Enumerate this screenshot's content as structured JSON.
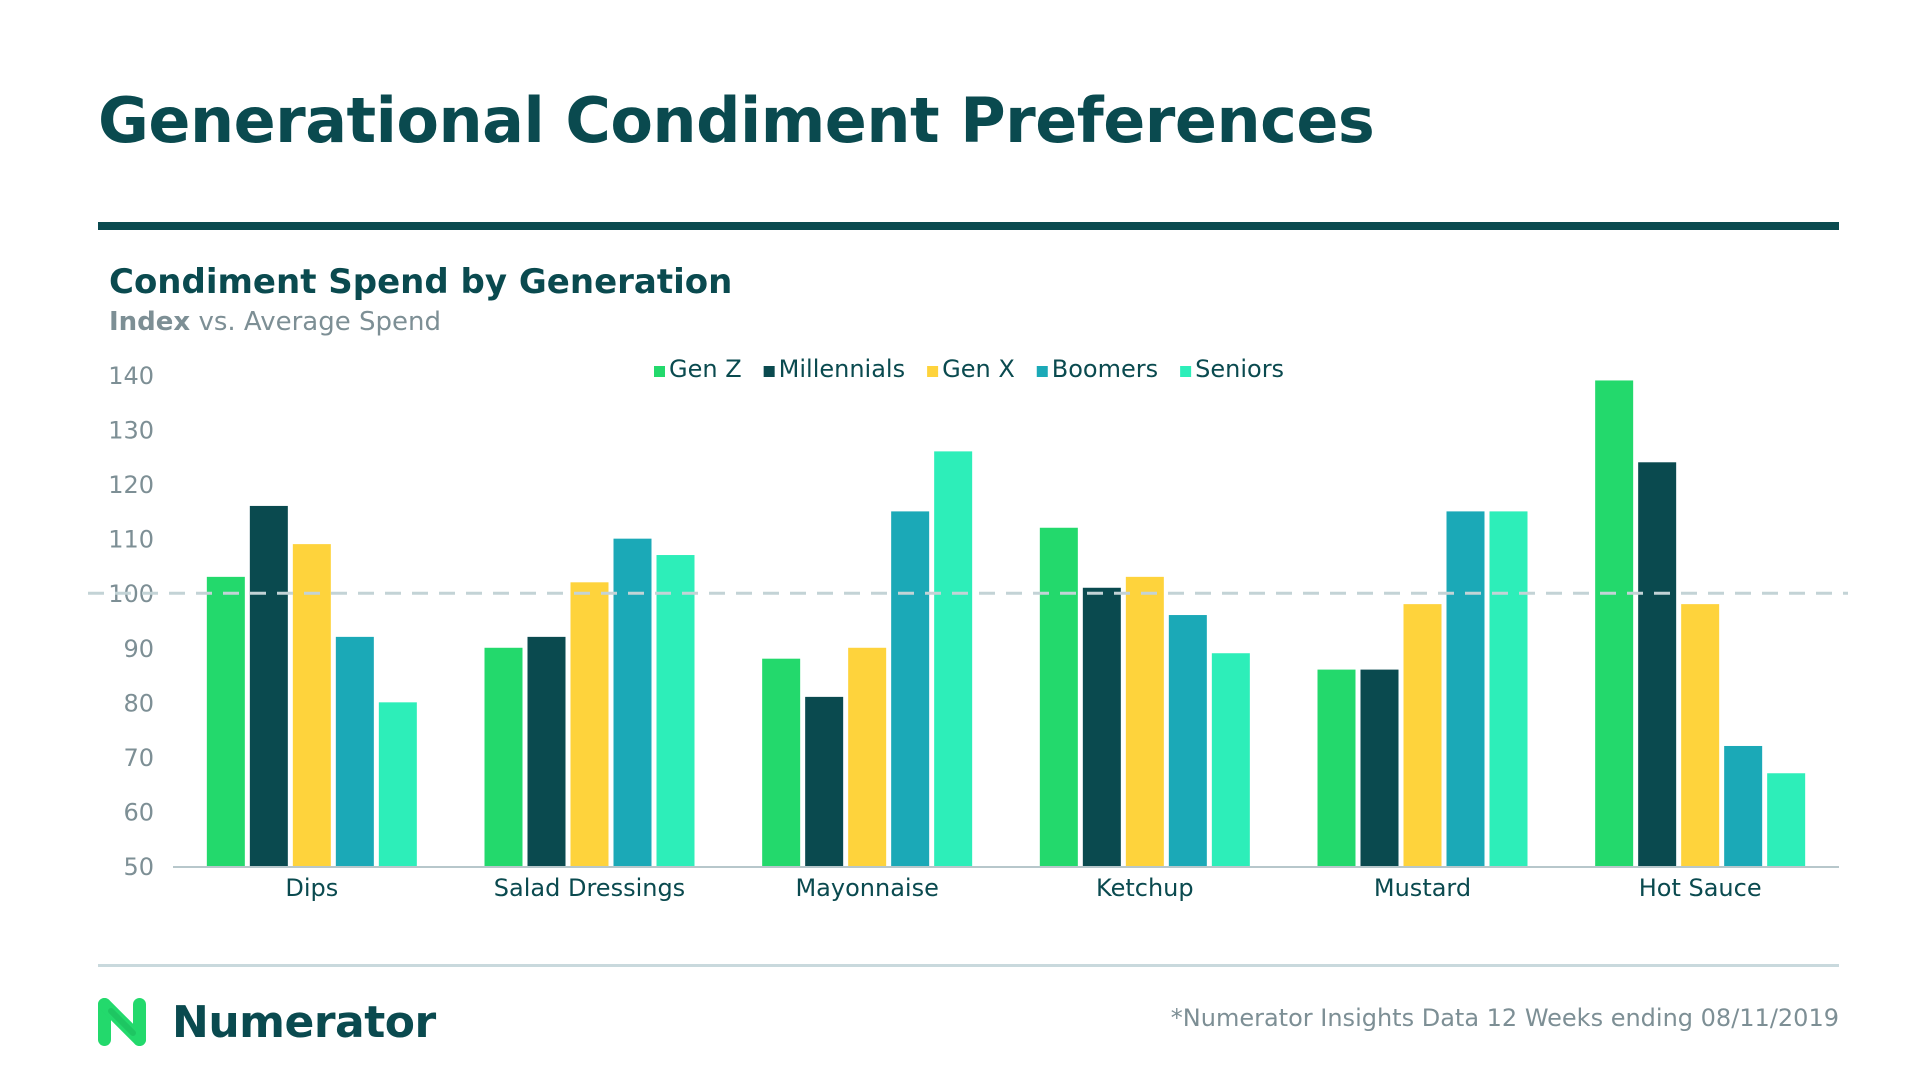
{
  "page": {
    "title": "Generational Condiment Preferences",
    "source_note": "*Numerator Insights Data 12 Weeks ending 08/11/2019"
  },
  "brand": {
    "name": "Numerator",
    "icon": "numerator-n-logo",
    "color": "#23d96c"
  },
  "chart_data": {
    "type": "bar",
    "title": "Condiment Spend by Generation",
    "subtitle_bold": "Index",
    "subtitle_rest": " vs. Average Spend",
    "xlabel": "",
    "ylabel": "",
    "ylim": [
      50,
      140
    ],
    "yticks": [
      50,
      60,
      70,
      80,
      90,
      100,
      110,
      120,
      130,
      140
    ],
    "reference_line": 100,
    "legend_position": "top-center",
    "categories": [
      "Dips",
      "Salad Dressings",
      "Mayonnaise",
      "Ketchup",
      "Mustard",
      "Hot Sauce"
    ],
    "series": [
      {
        "name": "Gen Z",
        "color": "#23d96c",
        "values": [
          103,
          90,
          88,
          112,
          86,
          139
        ]
      },
      {
        "name": "Millennials",
        "color": "#0a4a4f",
        "values": [
          116,
          92,
          81,
          101,
          86,
          124
        ]
      },
      {
        "name": "Gen X",
        "color": "#fed33c",
        "values": [
          109,
          102,
          90,
          103,
          98,
          98
        ]
      },
      {
        "name": "Boomers",
        "color": "#1ba9b7",
        "values": [
          92,
          110,
          115,
          96,
          115,
          72
        ]
      },
      {
        "name": "Seniors",
        "color": "#2deeb9",
        "values": [
          80,
          107,
          126,
          89,
          115,
          67
        ]
      }
    ],
    "gridlines": false
  }
}
